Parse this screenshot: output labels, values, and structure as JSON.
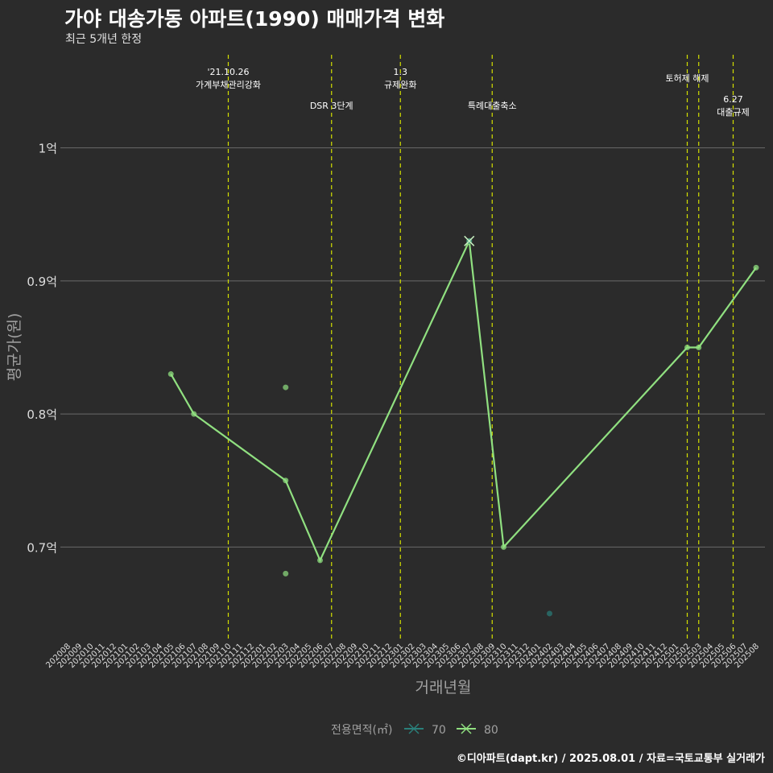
{
  "title": "가야 대송가동 아파트(1990) 매매가격 변화",
  "subtitle": "최근 5개년 한정",
  "footer": "©디아파트(dapt.kr) / 2025.08.01 / 자료=국토교통부 실거래가",
  "colors": {
    "background": "#2b2b2b",
    "grid": "#6a6a6a",
    "series_70": "#2a7f7a",
    "series_80": "#90e080",
    "event_line": "#d4e000",
    "axis_text": "#dddddd",
    "axis_title": "#a0a0a0"
  },
  "chart_data": {
    "type": "line",
    "xlabel": "거래년월",
    "ylabel": "평균가(원)",
    "ylim": [
      0.63,
      1.07
    ],
    "y_ticks": [
      {
        "value": 0.7,
        "label": "0.7억"
      },
      {
        "value": 0.8,
        "label": "0.8억"
      },
      {
        "value": 0.9,
        "label": "0.9억"
      },
      {
        "value": 1.0,
        "label": "1억"
      }
    ],
    "x_categories": [
      "202008",
      "202009",
      "202010",
      "202011",
      "202012",
      "202101",
      "202102",
      "202103",
      "202104",
      "202105",
      "202106",
      "202107",
      "202108",
      "202109",
      "202110",
      "202111",
      "202112",
      "202201",
      "202202",
      "202203",
      "202204",
      "202205",
      "202206",
      "202207",
      "202208",
      "202209",
      "202210",
      "202211",
      "202212",
      "202301",
      "202302",
      "202303",
      "202304",
      "202305",
      "202306",
      "202307",
      "202308",
      "202309",
      "202310",
      "202311",
      "202312",
      "202401",
      "202402",
      "202403",
      "202404",
      "202405",
      "202406",
      "202407",
      "202408",
      "202409",
      "202410",
      "202411",
      "202412",
      "202501",
      "202502",
      "202503",
      "202504",
      "202505",
      "202506",
      "202507",
      "202508"
    ],
    "grid": true,
    "legend": {
      "position": "bottom",
      "title": "전용면적(㎡)",
      "entries": [
        {
          "name": "70",
          "color": "#2a7f7a"
        },
        {
          "name": "80",
          "color": "#90e080"
        }
      ]
    },
    "series": [
      {
        "name": "80",
        "color": "#90e080",
        "line": [
          {
            "x": "202105",
            "y": 0.83
          },
          {
            "x": "202107",
            "y": 0.8
          },
          {
            "x": "202203",
            "y": 0.75
          },
          {
            "x": "202206",
            "y": 0.69
          },
          {
            "x": "202307",
            "y": 0.93
          },
          {
            "x": "202310",
            "y": 0.7
          },
          {
            "x": "202502",
            "y": 0.85
          },
          {
            "x": "202503",
            "y": 0.85
          },
          {
            "x": "202508",
            "y": 0.91
          }
        ],
        "points": [
          {
            "x": "202203",
            "y": 0.82
          },
          {
            "x": "202203",
            "y": 0.68
          }
        ]
      },
      {
        "name": "70",
        "color": "#2a7f7a",
        "line": [],
        "points": [
          {
            "x": "202402",
            "y": 0.65
          },
          {
            "x": "202307",
            "y": 0.93
          }
        ]
      }
    ],
    "events": [
      {
        "x": "202110",
        "lines": [
          "'21.10.26",
          "가계부채관리강화"
        ],
        "row": 0
      },
      {
        "x": "202207",
        "lines": [
          "DSR 3단계"
        ],
        "row": 2
      },
      {
        "x": "202301",
        "lines": [
          "1.3",
          "규제완화"
        ],
        "row": 0
      },
      {
        "x": "202309",
        "lines": [
          "특례대출축소"
        ],
        "row": 2
      },
      {
        "x": "202502",
        "lines": [
          "토허제 해제"
        ],
        "row": 1
      },
      {
        "x": "202503",
        "lines": [],
        "row": 1
      },
      {
        "x": "202506",
        "lines": [
          "6.27",
          "대출규제"
        ],
        "row": 3
      }
    ]
  }
}
